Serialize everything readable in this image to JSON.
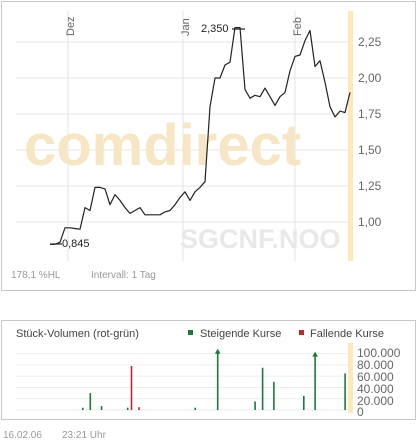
{
  "price_chart": {
    "type": "line",
    "watermark_brand": "comdirect",
    "watermark_symbol": "SGCNF.NOO",
    "x_axis_labels": [
      "Dez",
      "Jan",
      "Feb"
    ],
    "y_axis_ticks": [
      "2,25",
      "2,00",
      "1,75",
      "1,50",
      "1,25",
      "1,00"
    ],
    "annotations": {
      "low": "0,845",
      "high": "2,350"
    },
    "footer": {
      "range": "178,1 %HL",
      "interval": "Intervall: 1 Tag"
    }
  },
  "volume_chart": {
    "title": "Stück-Volumen (rot-grün)",
    "legend": [
      {
        "label": "Steigende Kurse",
        "color": "#1a7a3a"
      },
      {
        "label": "Fallende Kurse",
        "color": "#c0272d"
      }
    ],
    "y_axis_ticks": [
      "100.000",
      "80.000",
      "60.000",
      "40.000",
      "20.000",
      "0"
    ]
  },
  "footer": {
    "date": "16.02.06",
    "time": "23:21 Uhr"
  },
  "colors": {
    "line": "#222222",
    "grid": "#e6e6e6",
    "today_bar": "#fde8b8",
    "rise": "#1a7a3a",
    "fall": "#c0272d"
  },
  "chart_data": [
    {
      "type": "line",
      "x_labels": [
        "Dez",
        "Jan",
        "Feb"
      ],
      "ylim": [
        0.8,
        2.5
      ],
      "values": [
        0.845,
        0.845,
        0.86,
        0.96,
        0.96,
        0.955,
        0.95,
        1.1,
        1.08,
        1.24,
        1.24,
        1.23,
        1.12,
        1.19,
        1.15,
        1.1,
        1.06,
        1.08,
        1.1,
        1.05,
        1.05,
        1.05,
        1.05,
        1.07,
        1.08,
        1.12,
        1.17,
        1.21,
        1.15,
        1.21,
        1.24,
        1.28,
        1.8,
        2.0,
        2.0,
        2.09,
        2.11,
        2.35,
        2.35,
        1.92,
        1.86,
        1.88,
        1.87,
        1.93,
        1.87,
        1.81,
        1.87,
        1.9,
        2.05,
        2.15,
        2.16,
        2.26,
        2.33,
        2.08,
        2.12,
        1.97,
        1.8,
        1.73,
        1.77,
        1.76,
        1.9
      ],
      "low_label": "0,845",
      "high_label": "2,350"
    },
    {
      "type": "bar",
      "ylim": [
        0,
        110000
      ],
      "series": [
        {
          "name": "Steigende Kurse",
          "values": [
            0,
            0,
            0,
            0,
            0,
            0,
            0,
            0,
            4000,
            0,
            30000,
            0,
            0,
            7000,
            0,
            0,
            0,
            0,
            0,
            0,
            4000,
            0,
            0,
            0,
            0,
            0,
            0,
            0,
            0,
            0,
            0,
            0,
            0,
            0,
            0,
            0,
            0,
            0,
            4000,
            0,
            0,
            0,
            0,
            0,
            105000,
            0,
            0,
            0,
            0,
            0,
            0,
            0,
            0,
            0,
            15000,
            0,
            75000,
            0,
            0,
            50000,
            0,
            0,
            0,
            0,
            0,
            0,
            0,
            25000,
            0,
            0,
            100000,
            0,
            0,
            0,
            0,
            0,
            0,
            0,
            65000,
            0
          ]
        },
        {
          "name": "Fallende Kurse",
          "values": [
            0,
            0,
            0,
            0,
            0,
            0,
            0,
            0,
            0,
            0,
            0,
            0,
            0,
            0,
            0,
            0,
            0,
            0,
            0,
            0,
            0,
            78000,
            0,
            5000,
            0,
            0,
            0,
            0,
            0,
            0,
            0,
            0,
            0,
            0,
            0,
            0,
            0,
            0,
            0,
            0,
            0,
            0,
            0,
            0,
            0,
            0,
            0,
            0,
            0,
            0,
            0,
            0,
            0,
            0,
            0,
            0,
            0,
            0,
            0,
            0,
            0,
            0,
            0,
            0,
            0,
            0,
            0,
            0,
            0,
            0,
            0,
            0,
            0,
            0,
            0,
            0,
            0,
            0,
            0,
            0
          ]
        }
      ]
    }
  ]
}
